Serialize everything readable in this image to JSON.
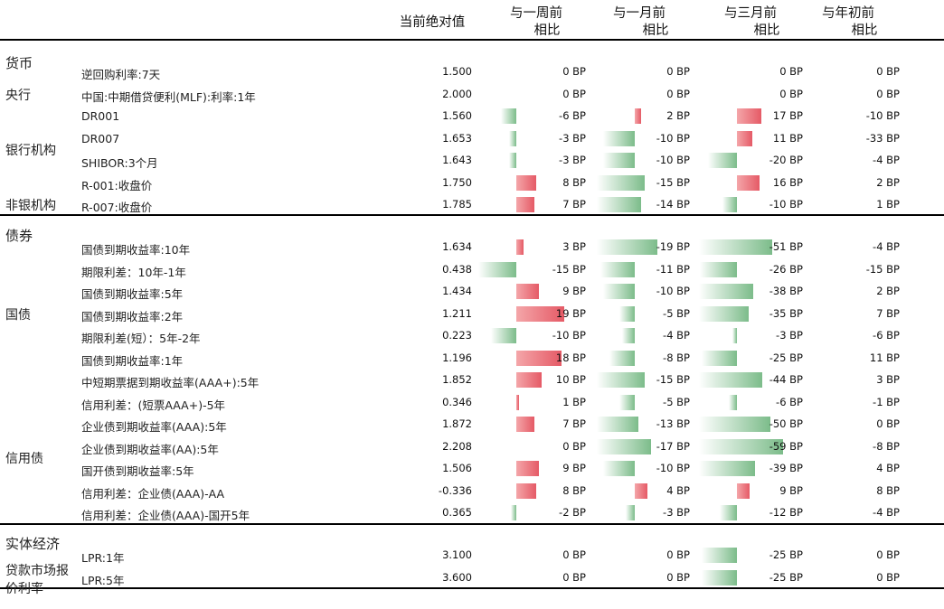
{
  "header": {
    "abs_value": "当前绝对值",
    "w1_line1": "与一周前",
    "w1_line2": "相比",
    "m1_line1": "与一月前",
    "m1_line2": "相比",
    "m3_line1": "与三月前",
    "m3_line2": "相比",
    "ytd_line1": "与年初前",
    "ytd_line2": "相比"
  },
  "colors": {
    "increase": "#e55a66",
    "decrease": "#7cbc8a"
  },
  "chart_data": {
    "type": "table",
    "unit": "BP",
    "columns": [
      "当前绝对值",
      "与一周前相比",
      "与一月前相比",
      "与三月前相比",
      "与年初前相比"
    ],
    "sections": [
      {
        "name": "货币",
        "groups": [
          {
            "name": "央行",
            "rows": [
              {
                "label": "逆回购利率:7天",
                "value": "1.500",
                "w1": 0,
                "m1": 0,
                "m3": 0,
                "ytd": 0
              },
              {
                "label": "中国:中期借贷便利(MLF):利率:1年",
                "value": "2.000",
                "w1": 0,
                "m1": 0,
                "m3": 0,
                "ytd": 0
              }
            ]
          },
          {
            "name": "银行机构",
            "rows": [
              {
                "label": "DR001",
                "value": "1.560",
                "w1": -6,
                "m1": 2,
                "m3": 17,
                "ytd": -10
              },
              {
                "label": "DR007",
                "value": "1.653",
                "w1": -3,
                "m1": -10,
                "m3": 11,
                "ytd": -33
              },
              {
                "label": "SHIBOR:3个月",
                "value": "1.643",
                "w1": -3,
                "m1": -10,
                "m3": -20,
                "ytd": -4
              }
            ]
          },
          {
            "name": "非银机构",
            "rows": [
              {
                "label": "R-001:收盘价",
                "value": "1.750",
                "w1": 8,
                "m1": -15,
                "m3": 16,
                "ytd": 2
              },
              {
                "label": "R-007:收盘价",
                "value": "1.785",
                "w1": 7,
                "m1": -14,
                "m3": -10,
                "ytd": 1
              }
            ]
          }
        ]
      },
      {
        "name": "债券",
        "groups": [
          {
            "name": "国债",
            "rows": [
              {
                "label": "国债到期收益率:10年",
                "value": "1.634",
                "w1": 3,
                "m1": -19,
                "m3": -51,
                "ytd": -4
              },
              {
                "label": "期限利差：10年-1年",
                "value": "0.438",
                "w1": -15,
                "m1": -11,
                "m3": -26,
                "ytd": -15
              },
              {
                "label": "国债到期收益率:5年",
                "value": "1.434",
                "w1": 9,
                "m1": -10,
                "m3": -38,
                "ytd": 2
              },
              {
                "label": "国债到期收益率:2年",
                "value": "1.211",
                "w1": 19,
                "m1": -5,
                "m3": -35,
                "ytd": 7
              },
              {
                "label": "期限利差(短）：5年-2年",
                "value": "0.223",
                "w1": -10,
                "m1": -4,
                "m3": -3,
                "ytd": -6
              },
              {
                "label": "国债到期收益率:1年",
                "value": "1.196",
                "w1": 18,
                "m1": -8,
                "m3": -25,
                "ytd": 11
              }
            ]
          },
          {
            "name": "信用债",
            "rows": [
              {
                "label": "中短期票据到期收益率(AAA+):5年",
                "value": "1.852",
                "w1": 10,
                "m1": -15,
                "m3": -44,
                "ytd": 3
              },
              {
                "label": "信用利差：(短票AAA+)-5年",
                "value": "0.346",
                "w1": 1,
                "m1": -5,
                "m3": -6,
                "ytd": -1
              },
              {
                "label": "企业债到期收益率(AAA):5年",
                "value": "1.872",
                "w1": 7,
                "m1": -13,
                "m3": -50,
                "ytd": 0
              },
              {
                "label": "企业债到期收益率(AA):5年",
                "value": "2.208",
                "w1": 0,
                "m1": -17,
                "m3": -59,
                "ytd": -8
              },
              {
                "label": "国开债到期收益率:5年",
                "value": "1.506",
                "w1": 9,
                "m1": -10,
                "m3": -39,
                "ytd": 4
              },
              {
                "label": "信用利差：企业债(AAA)-AA",
                "value": "-0.336",
                "w1": 8,
                "m1": 4,
                "m3": 9,
                "ytd": 8
              },
              {
                "label": "信用利差：企业债(AAA)-国开5年",
                "value": "0.365",
                "w1": -2,
                "m1": -3,
                "m3": -12,
                "ytd": -4
              }
            ]
          }
        ]
      },
      {
        "name": "实体经济",
        "groups": [
          {
            "name": "贷款市场报价利率",
            "rows": [
              {
                "label": "LPR:1年",
                "value": "3.100",
                "w1": 0,
                "m1": 0,
                "m3": -25,
                "ytd": 0
              },
              {
                "label": "LPR:5年",
                "value": "3.600",
                "w1": 0,
                "m1": 0,
                "m3": -25,
                "ytd": 0
              }
            ]
          }
        ]
      }
    ]
  }
}
